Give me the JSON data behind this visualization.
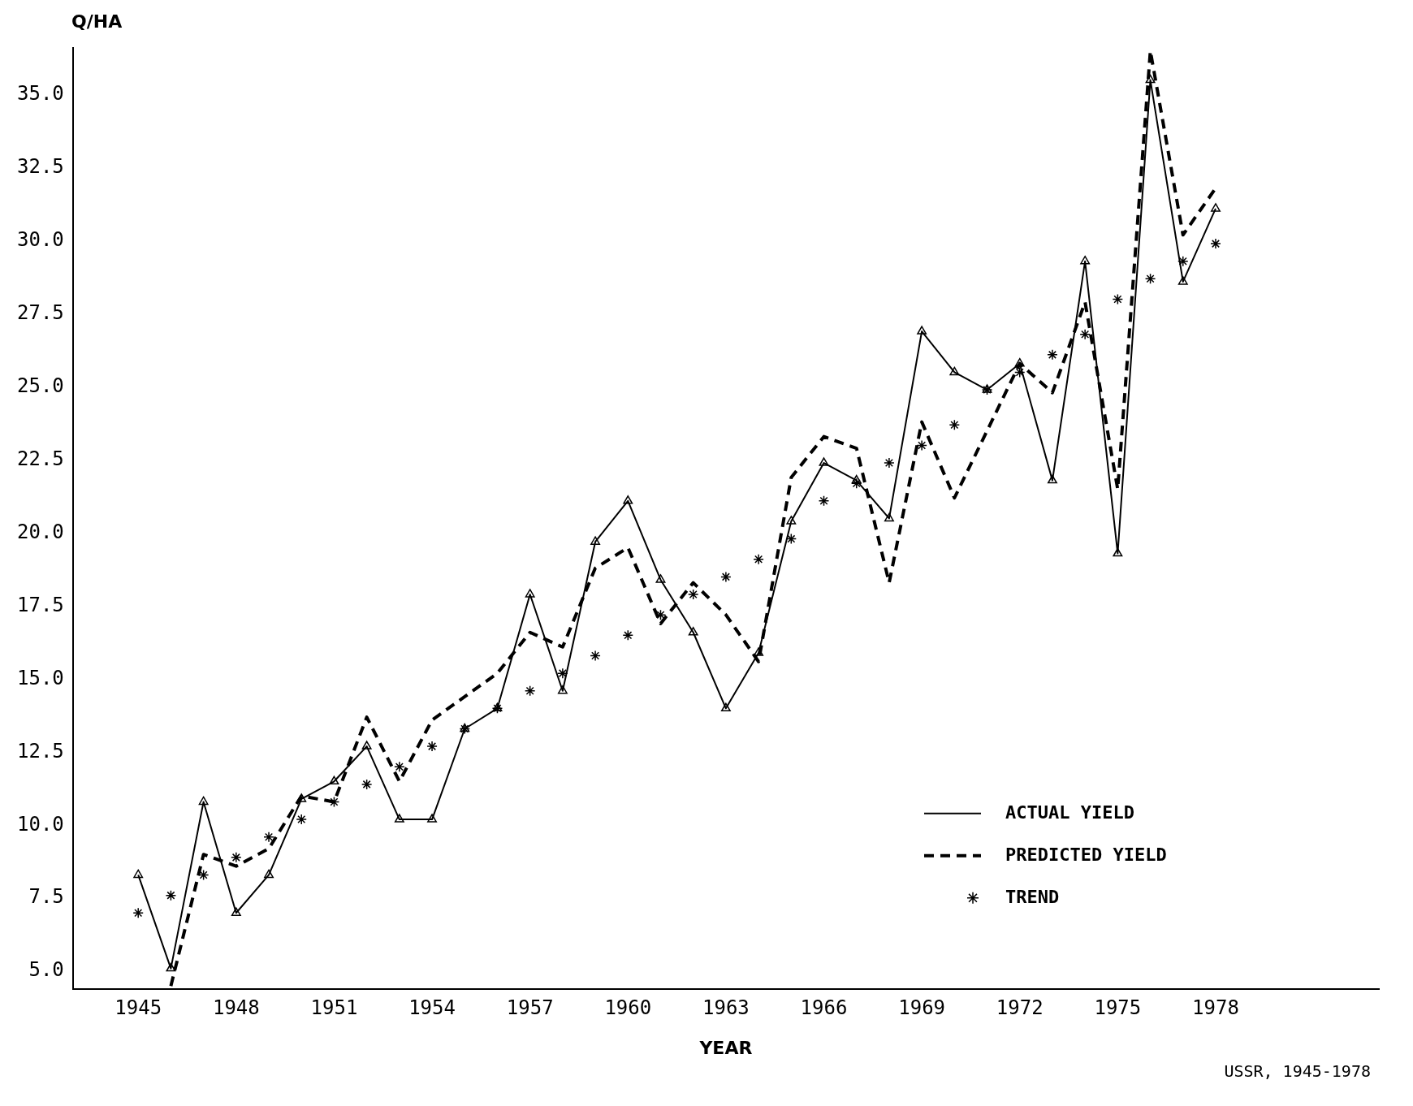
{
  "chart_data": {
    "type": "line",
    "xlabel": "YEAR",
    "ylabel": "Q/HA",
    "x": [
      1945,
      1946,
      1947,
      1948,
      1949,
      1950,
      1951,
      1952,
      1953,
      1954,
      1955,
      1956,
      1957,
      1958,
      1959,
      1960,
      1961,
      1962,
      1963,
      1964,
      1965,
      1966,
      1967,
      1968,
      1969,
      1970,
      1971,
      1972,
      1973,
      1974,
      1975,
      1976,
      1977,
      1978
    ],
    "series": [
      {
        "name": "ACTUAL YIELD",
        "color": "#000000",
        "marker": "triangle",
        "line_style": "solid",
        "values": [
          8.3,
          5.1,
          10.8,
          7.0,
          8.3,
          10.9,
          11.5,
          12.7,
          10.2,
          10.2,
          13.3,
          14.0,
          17.9,
          14.6,
          19.7,
          21.1,
          18.4,
          16.6,
          14.0,
          15.9,
          20.4,
          22.4,
          21.8,
          20.5,
          26.9,
          25.5,
          24.9,
          25.8,
          21.8,
          29.3,
          19.3,
          35.5,
          28.6,
          31.1
        ]
      },
      {
        "name": "PREDICTED YIELD",
        "color": "#000000",
        "marker": "none",
        "line_style": "dashed",
        "values": [
          null,
          4.5,
          9.0,
          8.6,
          9.2,
          11.0,
          10.8,
          13.7,
          11.5,
          13.6,
          14.4,
          15.2,
          16.6,
          16.1,
          18.8,
          19.5,
          16.9,
          18.3,
          17.2,
          15.6,
          21.9,
          23.3,
          22.9,
          18.3,
          23.8,
          21.2,
          23.5,
          25.8,
          24.8,
          27.9,
          21.5,
          36.5,
          30.2,
          31.8
        ]
      },
      {
        "name": "TREND",
        "type": "scatter",
        "color": "#000000",
        "marker": "cross",
        "values": [
          7.0,
          7.6,
          8.3,
          8.9,
          9.6,
          10.2,
          10.8,
          11.4,
          12.0,
          12.7,
          13.3,
          14.0,
          14.6,
          15.2,
          15.8,
          16.5,
          17.2,
          17.9,
          18.5,
          19.1,
          19.8,
          21.1,
          21.7,
          22.4,
          23.0,
          23.7,
          24.9,
          25.5,
          26.1,
          26.8,
          28.0,
          28.7,
          29.3,
          29.9
        ]
      }
    ],
    "xlim": [
      1943,
      1983
    ],
    "xticks": [
      1945,
      1948,
      1951,
      1954,
      1957,
      1960,
      1963,
      1966,
      1969,
      1972,
      1975,
      1978
    ],
    "ylim": [
      4.4,
      36.6
    ],
    "yticks": [
      {
        "value": 5,
        "label": "5.0"
      },
      {
        "value": 7.5,
        "label": "7.5"
      },
      {
        "value": 10,
        "label": "10.0"
      },
      {
        "value": 12.5,
        "label": "12.5"
      },
      {
        "value": 15,
        "label": "15.0"
      },
      {
        "value": 17.5,
        "label": "17.5"
      },
      {
        "value": 20,
        "label": "20.0"
      },
      {
        "value": 22.5,
        "label": "22.5"
      },
      {
        "value": 25,
        "label": "25.0"
      },
      {
        "value": 27.5,
        "label": "27.5"
      },
      {
        "value": 30,
        "label": "30.0"
      },
      {
        "value": 32.5,
        "label": "32.5"
      },
      {
        "value": 35,
        "label": "35.0"
      }
    ],
    "grid": false,
    "legend": "bottom right",
    "annotations": [
      "USSR, 1945-1978"
    ]
  }
}
